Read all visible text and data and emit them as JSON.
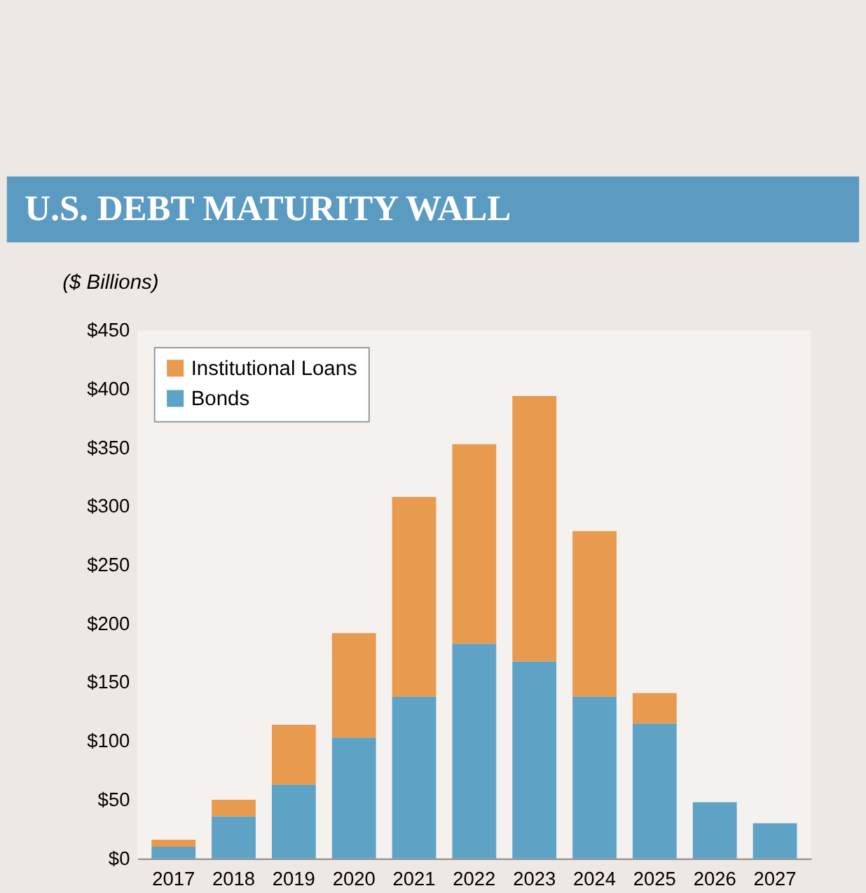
{
  "chart_data": {
    "type": "bar",
    "title": "U.S. DEBT MATURITY WALL",
    "ylabel": "($ Billions)",
    "stacked": true,
    "legend": "top left",
    "grid": false,
    "categories": [
      "2017",
      "2018",
      "2019",
      "2020",
      "2021",
      "2022",
      "2023",
      "2024",
      "2025",
      "2026",
      "2027"
    ],
    "series": [
      {
        "name": "Bonds",
        "color": "#5ea3c6",
        "values": [
          10,
          36,
          63,
          103,
          138,
          183,
          168,
          138,
          115,
          48,
          30
        ]
      },
      {
        "name": "Institutional Loans",
        "color": "#e89a4f",
        "values": [
          6,
          14,
          51,
          89,
          170,
          170,
          226,
          141,
          26,
          0,
          0
        ]
      }
    ],
    "ylim": [
      0,
      450
    ],
    "yticks": [
      {
        "value": 0,
        "label": "$0"
      },
      {
        "value": 50,
        "label": "$50"
      },
      {
        "value": 100,
        "label": "$100"
      },
      {
        "value": 150,
        "label": "$150"
      },
      {
        "value": 200,
        "label": "$200"
      },
      {
        "value": 250,
        "label": "$250"
      },
      {
        "value": 300,
        "label": "$300"
      },
      {
        "value": 350,
        "label": "$350"
      },
      {
        "value": 400,
        "label": "$400"
      },
      {
        "value": 450,
        "label": "$450"
      }
    ]
  }
}
